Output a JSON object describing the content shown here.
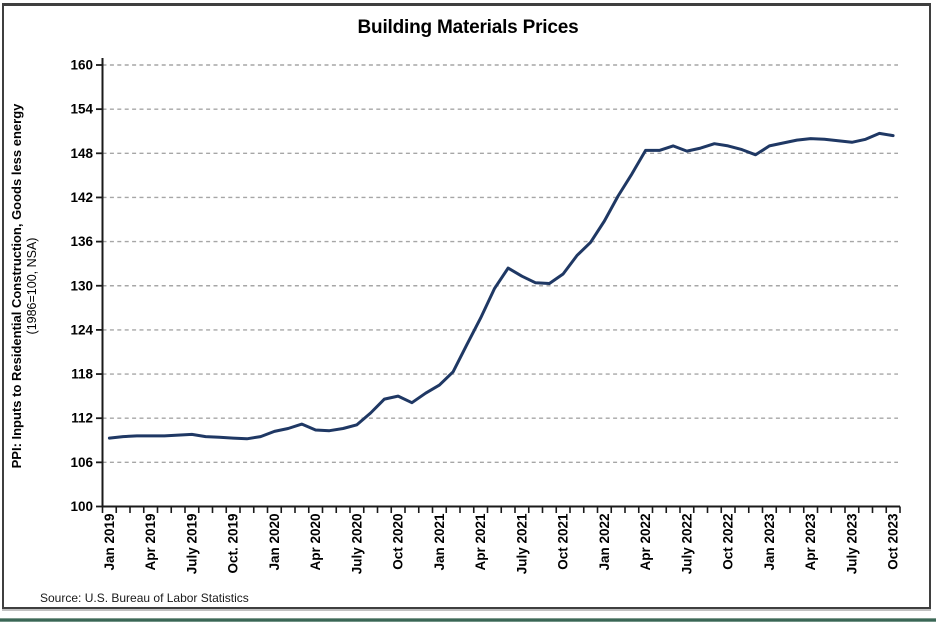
{
  "chart_data": {
    "type": "line",
    "title": "Building Materials Prices",
    "ylabel_line1": "PPI: Inputs to Residential Construction, Goods less energy",
    "ylabel_line2": "(1986=100, NSA)",
    "source": "Source: U.S. Bureau of Labor Statistics",
    "series_name": "PPI: Inputs to Residential Construction, Goods less energy",
    "ylim": [
      100,
      160
    ],
    "yticks": [
      100,
      106,
      112,
      118,
      124,
      130,
      136,
      142,
      148,
      154,
      160
    ],
    "grid": "horizontal-dashed",
    "legend": "none",
    "xtick_every": 3,
    "xtick_labels": [
      "Jan 2019",
      "Apr 2019",
      "July 2019",
      "Oct. 2019",
      "Jan 2020",
      "Apr 2020",
      "July 2020",
      "Oct 2020",
      "Jan 2021",
      "Apr 2021",
      "July 2021",
      "Oct 2021",
      "Jan 2022",
      "Apr 2022",
      "July 2022",
      "Oct 2022",
      "Jan 2023",
      "Apr 2023",
      "July 2023",
      "Oct 2023"
    ],
    "x": [
      "Jan 2019",
      "Feb 2019",
      "Mar 2019",
      "Apr 2019",
      "May 2019",
      "Jun 2019",
      "Jul 2019",
      "Aug 2019",
      "Sep 2019",
      "Oct 2019",
      "Nov 2019",
      "Dec 2019",
      "Jan 2020",
      "Feb 2020",
      "Mar 2020",
      "Apr 2020",
      "May 2020",
      "Jun 2020",
      "Jul 2020",
      "Aug 2020",
      "Sep 2020",
      "Oct 2020",
      "Nov 2020",
      "Dec 2020",
      "Jan 2021",
      "Feb 2021",
      "Mar 2021",
      "Apr 2021",
      "May 2021",
      "Jun 2021",
      "Jul 2021",
      "Aug 2021",
      "Sep 2021",
      "Oct 2021",
      "Nov 2021",
      "Dec 2021",
      "Jan 2022",
      "Feb 2022",
      "Mar 2022",
      "Apr 2022",
      "May 2022",
      "Jun 2022",
      "Jul 2022",
      "Aug 2022",
      "Sep 2022",
      "Oct 2022",
      "Nov 2022",
      "Dec 2022",
      "Jan 2023",
      "Feb 2023",
      "Mar 2023",
      "Apr 2023",
      "May 2023",
      "Jun 2023",
      "Jul 2023",
      "Aug 2023",
      "Sep 2023",
      "Oct 2023"
    ],
    "values": [
      109.3,
      109.5,
      109.6,
      109.6,
      109.6,
      109.7,
      109.8,
      109.5,
      109.4,
      109.3,
      109.2,
      109.5,
      110.2,
      110.6,
      111.2,
      110.4,
      110.3,
      110.6,
      111.1,
      112.7,
      114.6,
      115.0,
      114.1,
      115.4,
      116.5,
      118.3,
      122.0,
      125.6,
      129.6,
      132.4,
      131.3,
      130.4,
      130.3,
      131.6,
      134.1,
      135.9,
      138.8,
      142.2,
      145.2,
      148.4,
      148.4,
      149.0,
      148.3,
      148.7,
      149.3,
      149.0,
      148.5,
      147.8,
      149.0,
      149.4,
      149.8,
      150.0,
      149.9,
      149.7,
      149.5,
      149.9,
      150.7,
      150.4
    ]
  },
  "colors": {
    "line": "#1f3864",
    "grid": "#a6a6a6",
    "axis": "#1a1a1a",
    "frame": "#3f3f3f",
    "accent_bar": "#2f5d4c",
    "text": "#000000"
  }
}
